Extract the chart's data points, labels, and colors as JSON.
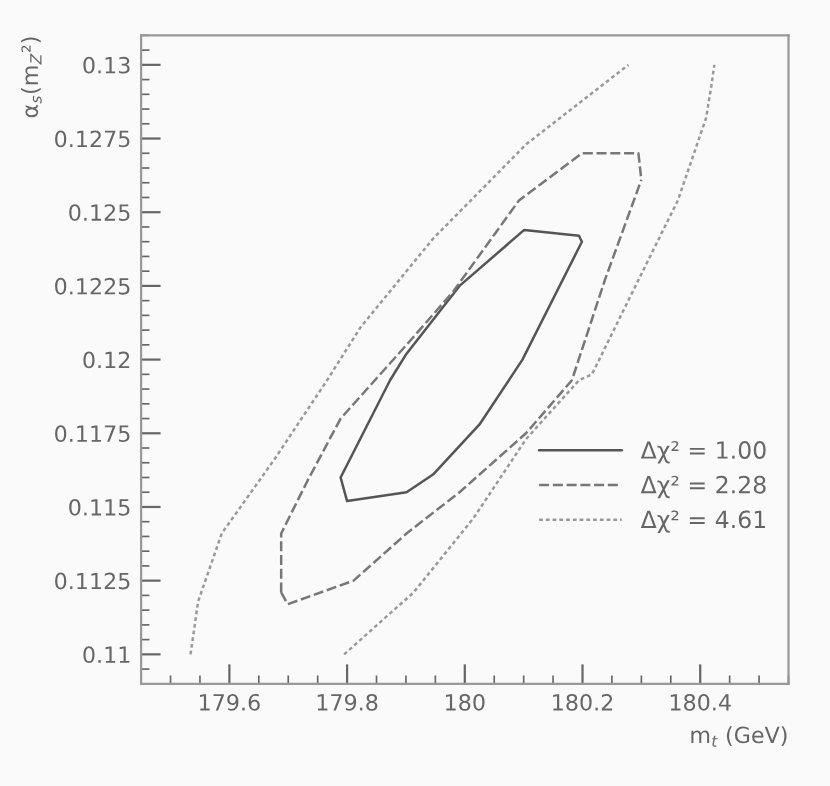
{
  "chart_data": {
    "type": "line",
    "xlabel": "m$_{t}$ (GeV)",
    "ylabel": "α$_{s}$(m$_{Z}$²)",
    "xlim": [
      179.45,
      180.55
    ],
    "ylim": [
      0.109,
      0.131
    ],
    "xticks": [
      179.6,
      179.8,
      180,
      180.2,
      180.4
    ],
    "yticks": [
      0.11,
      0.1125,
      0.115,
      0.1175,
      0.12,
      0.1225,
      0.125,
      0.1275,
      0.13
    ],
    "legend": "bottom right",
    "grid": false,
    "series": [
      {
        "name": "Δχ² = 1.00",
        "color": "#555555",
        "line_style": "solid",
        "x": [
          179.789,
          179.8,
          179.901,
          179.946,
          180.025,
          180.098,
          180.199,
          null,
          179.789,
          179.873,
          179.901,
          179.991,
          180.101,
          180.194,
          180.199
        ],
        "values": [
          0.116,
          0.1152,
          0.1155,
          0.1161,
          0.1178,
          0.12,
          0.124,
          null,
          0.116,
          0.1193,
          0.1202,
          0.1225,
          0.1244,
          0.1242,
          0.124
        ]
      },
      {
        "name": "Δχ² = 2.28",
        "color": "#777777",
        "line_style": "dashed",
        "x": [
          179.688,
          179.699,
          179.811,
          179.901,
          179.991,
          180.104,
          180.182,
          180.238,
          180.3,
          null,
          179.688,
          179.688,
          179.733,
          179.789,
          179.901,
          179.98,
          180.092,
          180.199,
          180.295,
          180.3
        ],
        "values": [
          0.1121,
          0.1117,
          0.1125,
          0.1141,
          0.1155,
          0.1175,
          0.1193,
          0.1227,
          0.1261,
          null,
          0.1121,
          0.1141,
          0.1159,
          0.118,
          0.1205,
          0.1223,
          0.1254,
          0.127,
          0.127,
          0.1261
        ]
      },
      {
        "name": "Δχ² = 4.61",
        "color": "#999999",
        "line_style": "dotted",
        "x": [
          179.534,
          179.547,
          179.587,
          179.676,
          179.766,
          179.823,
          179.946,
          180.104,
          180.278,
          null,
          179.795,
          179.913,
          180.014,
          180.104,
          180.194,
          180.216,
          180.295,
          180.362,
          180.41,
          180.419,
          180.424
        ],
        "values": [
          0.11,
          0.1118,
          0.1141,
          0.1166,
          0.1193,
          0.1211,
          0.1241,
          0.1273,
          0.13,
          null,
          0.11,
          0.1121,
          0.1146,
          0.1173,
          0.1193,
          0.1195,
          0.1227,
          0.1254,
          0.1282,
          0.1293,
          0.13
        ]
      }
    ]
  }
}
